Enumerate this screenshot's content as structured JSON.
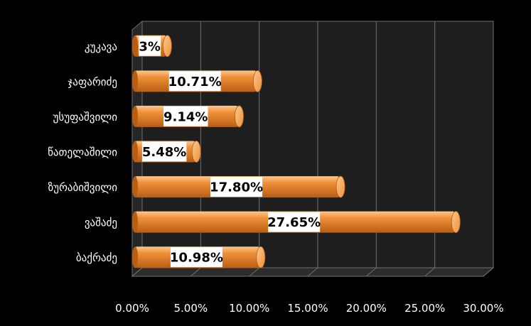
{
  "chart_data": {
    "type": "bar",
    "orientation": "horizontal",
    "three_d": true,
    "categories": [
      "ბაქრაძე",
      "ვაშაძე",
      "ზურაბიშვილი",
      "წათელაშილი",
      "უსუფაშვილი",
      "ჯაფარიძე",
      "კუკავა"
    ],
    "values": [
      10.98,
      27.65,
      17.8,
      5.48,
      9.14,
      10.71,
      3
    ],
    "data_labels": [
      "10.98%",
      "27.65%",
      "17.80%",
      "5.48%",
      "9.14%",
      "10.71%",
      "3%"
    ],
    "x_ticks": [
      "0.00%",
      "5.00%",
      "10.00%",
      "15.00%",
      "20.00%",
      "25.00%",
      "30.00%"
    ],
    "xlim": [
      0,
      30
    ],
    "grid": true,
    "legend": false,
    "colors": {
      "background": "#000000",
      "bar": "#f0913a",
      "bar_highlight": "#fbc88f",
      "bar_shadow": "#b85d14",
      "wall": "#1e1e1e",
      "grid": "#6f6f6f",
      "text": "#ffffff",
      "label_box": "#ffffff",
      "label_text": "#000000"
    }
  }
}
